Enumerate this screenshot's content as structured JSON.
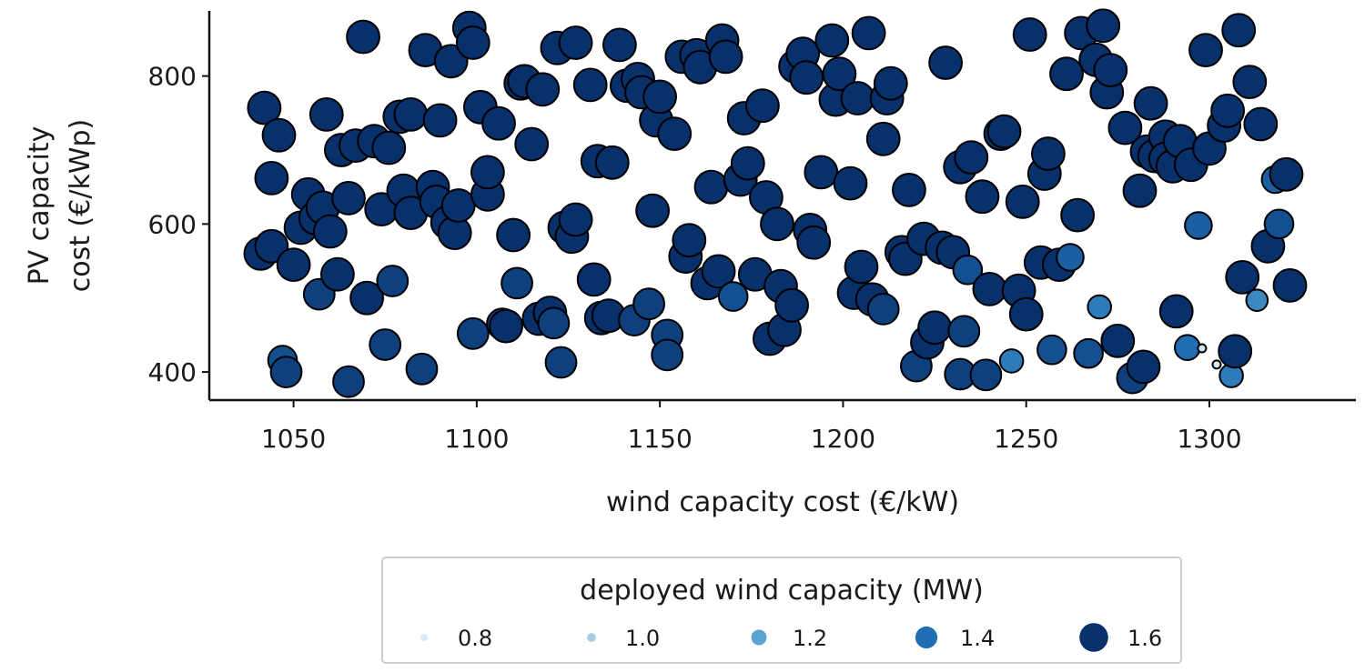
{
  "chart_data": {
    "type": "scatter",
    "title": "",
    "xlabel": "wind capacity cost (€/kW)",
    "ylabel_lines": [
      "PV capacity",
      "cost (€/kWp)"
    ],
    "xlim": [
      1027,
      1340
    ],
    "ylim": [
      362,
      888
    ],
    "x_ticks": [
      1050,
      1100,
      1150,
      1200,
      1250,
      1300
    ],
    "y_ticks": [
      400,
      600,
      800
    ],
    "grid": false,
    "legend": {
      "title": "deployed wind capacity (MW)",
      "placement": "below-center",
      "entries": [
        {
          "label": "0.8",
          "value": 0.8,
          "color": "#dbe9f6"
        },
        {
          "label": "1.0",
          "value": 1.0,
          "color": "#a6cde3"
        },
        {
          "label": "1.2",
          "value": 1.2,
          "color": "#5ba3d0"
        },
        {
          "label": "1.4",
          "value": 1.4,
          "color": "#1f6eb3"
        },
        {
          "label": "1.6",
          "value": 1.6,
          "color": "#08306b"
        }
      ]
    },
    "series": [
      {
        "points": [
          [
            1041,
            560,
            1.6
          ],
          [
            1042,
            757,
            1.6
          ],
          [
            1044,
            570,
            1.6
          ],
          [
            1044,
            662,
            1.6
          ],
          [
            1046,
            720,
            1.6
          ],
          [
            1047,
            416,
            1.5
          ],
          [
            1048,
            400,
            1.55
          ],
          [
            1050,
            545,
            1.6
          ],
          [
            1052,
            595,
            1.6
          ],
          [
            1054,
            640,
            1.6
          ],
          [
            1056,
            608,
            1.6
          ],
          [
            1057,
            505,
            1.55
          ],
          [
            1058,
            622,
            1.6
          ],
          [
            1059,
            748,
            1.6
          ],
          [
            1060,
            590,
            1.6
          ],
          [
            1062,
            532,
            1.6
          ],
          [
            1063,
            700,
            1.6
          ],
          [
            1065,
            635,
            1.6
          ],
          [
            1065,
            387,
            1.55
          ],
          [
            1067,
            706,
            1.6
          ],
          [
            1069,
            853,
            1.6
          ],
          [
            1070,
            500,
            1.6
          ],
          [
            1072,
            712,
            1.6
          ],
          [
            1074,
            620,
            1.6
          ],
          [
            1075,
            437,
            1.55
          ],
          [
            1076,
            703,
            1.6
          ],
          [
            1077,
            523,
            1.55
          ],
          [
            1079,
            745,
            1.6
          ],
          [
            1080,
            645,
            1.6
          ],
          [
            1082,
            748,
            1.6
          ],
          [
            1082,
            615,
            1.6
          ],
          [
            1085,
            404,
            1.55
          ],
          [
            1086,
            835,
            1.6
          ],
          [
            1088,
            650,
            1.6
          ],
          [
            1089,
            630,
            1.6
          ],
          [
            1090,
            740,
            1.6
          ],
          [
            1092,
            602,
            1.6
          ],
          [
            1093,
            820,
            1.6
          ],
          [
            1094,
            588,
            1.6
          ],
          [
            1095,
            625,
            1.6
          ],
          [
            1098,
            865,
            1.6
          ],
          [
            1099,
            845,
            1.6
          ],
          [
            1099,
            452,
            1.55
          ],
          [
            1101,
            758,
            1.6
          ],
          [
            1103,
            640,
            1.6
          ],
          [
            1103,
            670,
            1.6
          ],
          [
            1106,
            736,
            1.6
          ],
          [
            1107,
            465,
            1.55
          ],
          [
            1108,
            462,
            1.6
          ],
          [
            1110,
            585,
            1.6
          ],
          [
            1111,
            520,
            1.55
          ],
          [
            1112,
            790,
            1.6
          ],
          [
            1113,
            793,
            1.6
          ],
          [
            1115,
            708,
            1.6
          ],
          [
            1117,
            472,
            1.6
          ],
          [
            1118,
            782,
            1.6
          ],
          [
            1120,
            480,
            1.6
          ],
          [
            1121,
            466,
            1.55
          ],
          [
            1122,
            838,
            1.6
          ],
          [
            1123,
            413,
            1.55
          ],
          [
            1124,
            595,
            1.6
          ],
          [
            1126,
            583,
            1.6
          ],
          [
            1127,
            845,
            1.6
          ],
          [
            1127,
            606,
            1.6
          ],
          [
            1131,
            788,
            1.6
          ],
          [
            1132,
            525,
            1.6
          ],
          [
            1133,
            685,
            1.6
          ],
          [
            1134,
            473,
            1.6
          ],
          [
            1136,
            476,
            1.6
          ],
          [
            1137,
            683,
            1.6
          ],
          [
            1139,
            842,
            1.6
          ],
          [
            1141,
            787,
            1.6
          ],
          [
            1143,
            470,
            1.55
          ],
          [
            1144,
            796,
            1.6
          ],
          [
            1145,
            778,
            1.6
          ],
          [
            1147,
            492,
            1.55
          ],
          [
            1148,
            618,
            1.6
          ],
          [
            1149,
            740,
            1.6
          ],
          [
            1150,
            772,
            1.6
          ],
          [
            1152,
            450,
            1.55
          ],
          [
            1152,
            423,
            1.55
          ],
          [
            1154,
            722,
            1.6
          ],
          [
            1156,
            826,
            1.6
          ],
          [
            1157,
            556,
            1.6
          ],
          [
            1158,
            578,
            1.6
          ],
          [
            1160,
            828,
            1.6
          ],
          [
            1161,
            812,
            1.6
          ],
          [
            1163,
            520,
            1.6
          ],
          [
            1164,
            650,
            1.6
          ],
          [
            1166,
            536,
            1.6
          ],
          [
            1167,
            848,
            1.6
          ],
          [
            1168,
            826,
            1.6
          ],
          [
            1170,
            502,
            1.5
          ],
          [
            1172,
            660,
            1.6
          ],
          [
            1173,
            743,
            1.6
          ],
          [
            1174,
            682,
            1.6
          ],
          [
            1176,
            532,
            1.6
          ],
          [
            1178,
            760,
            1.6
          ],
          [
            1179,
            636,
            1.6
          ],
          [
            1180,
            445,
            1.6
          ],
          [
            1182,
            600,
            1.6
          ],
          [
            1183,
            516,
            1.6
          ],
          [
            1184,
            457,
            1.6
          ],
          [
            1186,
            490,
            1.6
          ],
          [
            1187,
            813,
            1.6
          ],
          [
            1189,
            830,
            1.6
          ],
          [
            1190,
            798,
            1.6
          ],
          [
            1191,
            592,
            1.6
          ],
          [
            1192,
            575,
            1.6
          ],
          [
            1194,
            670,
            1.6
          ],
          [
            1197,
            848,
            1.6
          ],
          [
            1198,
            768,
            1.6
          ],
          [
            1199,
            803,
            1.6
          ],
          [
            1202,
            655,
            1.6
          ],
          [
            1203,
            507,
            1.6
          ],
          [
            1204,
            770,
            1.6
          ],
          [
            1205,
            542,
            1.6
          ],
          [
            1207,
            858,
            1.6
          ],
          [
            1208,
            498,
            1.6
          ],
          [
            1211,
            485,
            1.55
          ],
          [
            1211,
            715,
            1.6
          ],
          [
            1212,
            770,
            1.6
          ],
          [
            1213,
            790,
            1.6
          ],
          [
            1216,
            562,
            1.6
          ],
          [
            1217,
            553,
            1.6
          ],
          [
            1218,
            646,
            1.6
          ],
          [
            1220,
            408,
            1.55
          ],
          [
            1222,
            580,
            1.6
          ],
          [
            1223,
            440,
            1.6
          ],
          [
            1225,
            460,
            1.6
          ],
          [
            1227,
            568,
            1.6
          ],
          [
            1228,
            818,
            1.6
          ],
          [
            1230,
            562,
            1.6
          ],
          [
            1232,
            397,
            1.55
          ],
          [
            1232,
            677,
            1.6
          ],
          [
            1233,
            455,
            1.55
          ],
          [
            1234,
            538,
            1.5
          ],
          [
            1235,
            690,
            1.6
          ],
          [
            1238,
            637,
            1.6
          ],
          [
            1239,
            396,
            1.55
          ],
          [
            1240,
            512,
            1.6
          ],
          [
            1243,
            722,
            1.6
          ],
          [
            1244,
            725,
            1.6
          ],
          [
            1246,
            415,
            1.35
          ],
          [
            1248,
            510,
            1.6
          ],
          [
            1249,
            630,
            1.6
          ],
          [
            1250,
            478,
            1.6
          ],
          [
            1251,
            856,
            1.6
          ],
          [
            1254,
            548,
            1.6
          ],
          [
            1255,
            668,
            1.6
          ],
          [
            1256,
            695,
            1.6
          ],
          [
            1257,
            430,
            1.5
          ],
          [
            1259,
            545,
            1.6
          ],
          [
            1261,
            803,
            1.6
          ],
          [
            1262,
            555,
            1.45
          ],
          [
            1264,
            612,
            1.6
          ],
          [
            1265,
            858,
            1.6
          ],
          [
            1267,
            425,
            1.5
          ],
          [
            1269,
            822,
            1.6
          ],
          [
            1270,
            488,
            1.35
          ],
          [
            1271,
            868,
            1.6
          ],
          [
            1272,
            778,
            1.6
          ],
          [
            1273,
            808,
            1.6
          ],
          [
            1275,
            442,
            1.6
          ],
          [
            1277,
            730,
            1.6
          ],
          [
            1279,
            392,
            1.55
          ],
          [
            1281,
            645,
            1.6
          ],
          [
            1282,
            407,
            1.6
          ],
          [
            1283,
            698,
            1.6
          ],
          [
            1284,
            763,
            1.6
          ],
          [
            1285,
            692,
            1.6
          ],
          [
            1288,
            718,
            1.6
          ],
          [
            1288,
            688,
            1.6
          ],
          [
            1290,
            678,
            1.6
          ],
          [
            1291,
            482,
            1.6
          ],
          [
            1292,
            712,
            1.6
          ],
          [
            1294,
            433,
            1.4
          ],
          [
            1295,
            680,
            1.6
          ],
          [
            1297,
            598,
            1.45
          ],
          [
            1298,
            432,
            0.85
          ],
          [
            1299,
            835,
            1.6
          ],
          [
            1300,
            702,
            1.6
          ],
          [
            1302,
            410,
            0.8
          ],
          [
            1304,
            733,
            1.6
          ],
          [
            1305,
            753,
            1.6
          ],
          [
            1306,
            395,
            1.35
          ],
          [
            1307,
            428,
            1.6
          ],
          [
            1308,
            862,
            1.6
          ],
          [
            1309,
            528,
            1.6
          ],
          [
            1311,
            792,
            1.6
          ],
          [
            1313,
            497,
            1.3
          ],
          [
            1314,
            735,
            1.6
          ],
          [
            1316,
            570,
            1.6
          ],
          [
            1318,
            660,
            1.45
          ],
          [
            1319,
            600,
            1.5
          ],
          [
            1321,
            667,
            1.6
          ],
          [
            1322,
            517,
            1.6
          ]
        ]
      }
    ]
  }
}
